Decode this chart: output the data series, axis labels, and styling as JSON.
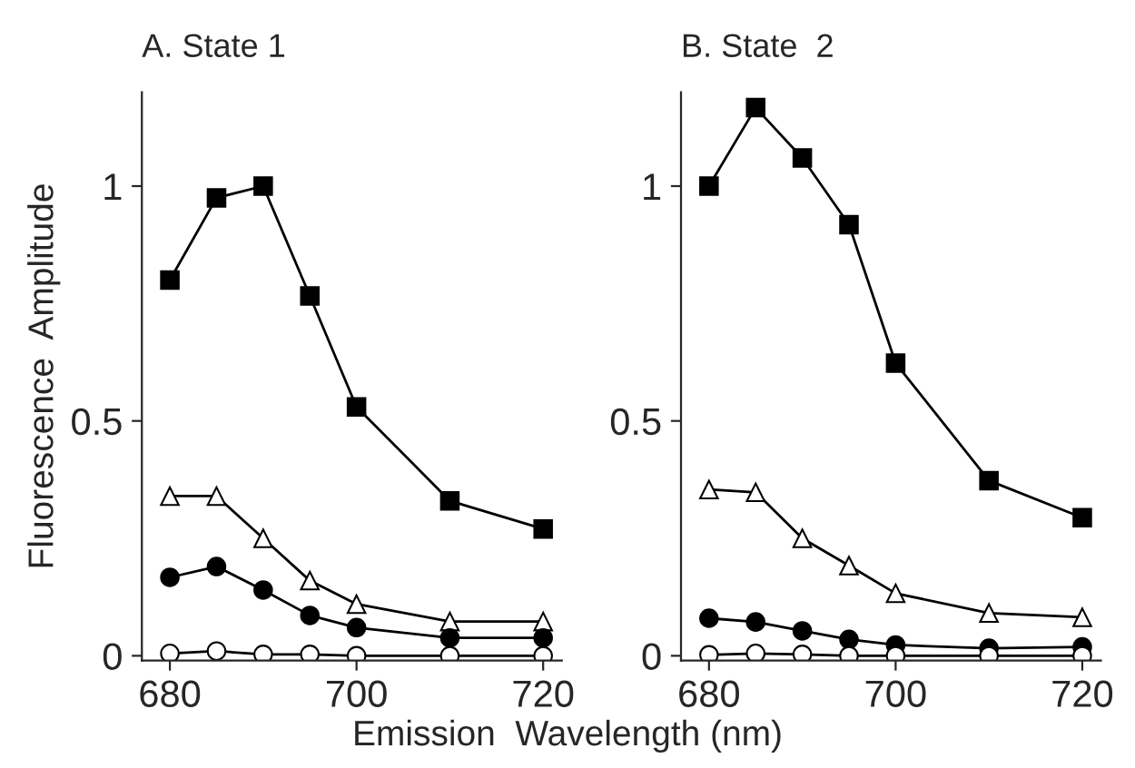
{
  "chart_data": [
    {
      "type": "line",
      "title": "A. State 1",
      "ylabel": "Fluorescence  Amplitude",
      "xlabel": "Emission  Wavelength (nm)",
      "x": [
        680,
        685,
        690,
        695,
        700,
        710,
        720
      ],
      "xlim": [
        677,
        722
      ],
      "xticks": [
        680,
        700,
        720
      ],
      "ylim": [
        -0.01,
        1.2
      ],
      "yticks": [
        0,
        0.5,
        1
      ],
      "grid": false,
      "legend": false,
      "line_style": "solid",
      "series": [
        {
          "color": "#000000",
          "marker": "square",
          "values": [
            0.8,
            0.975,
            1.0,
            0.766,
            0.53,
            0.33,
            0.27
          ]
        },
        {
          "color": "#ffffff",
          "marker": "triangle",
          "values": [
            0.34,
            0.34,
            0.25,
            0.16,
            0.11,
            0.073,
            0.073
          ]
        },
        {
          "color": "#000000",
          "marker": "circle",
          "values": [
            0.167,
            0.19,
            0.14,
            0.086,
            0.06,
            0.038,
            0.038
          ]
        },
        {
          "color": "#ffffff",
          "marker": "circle",
          "values": [
            0.005,
            0.01,
            0.003,
            0.003,
            0.0,
            0.0,
            0.0
          ]
        }
      ]
    },
    {
      "type": "line",
      "title": "B. State  2",
      "x": [
        680,
        685,
        690,
        695,
        700,
        710,
        720
      ],
      "xlim": [
        677,
        722
      ],
      "xticks": [
        680,
        700,
        720
      ],
      "ylim": [
        -0.01,
        1.2
      ],
      "yticks": [
        0,
        0.5,
        1
      ],
      "grid": false,
      "legend": false,
      "line_style": "solid",
      "series": [
        {
          "color": "#000000",
          "marker": "square",
          "values": [
            1.0,
            1.167,
            1.06,
            0.918,
            0.623,
            0.373,
            0.294
          ]
        },
        {
          "color": "#ffffff",
          "marker": "triangle",
          "values": [
            0.354,
            0.348,
            0.25,
            0.192,
            0.133,
            0.091,
            0.082
          ]
        },
        {
          "color": "#000000",
          "marker": "circle",
          "values": [
            0.08,
            0.072,
            0.053,
            0.035,
            0.023,
            0.016,
            0.019
          ]
        },
        {
          "color": "#ffffff",
          "marker": "circle",
          "values": [
            0.002,
            0.005,
            0.003,
            0.0,
            0.0,
            0.0,
            0.0
          ]
        }
      ]
    }
  ]
}
